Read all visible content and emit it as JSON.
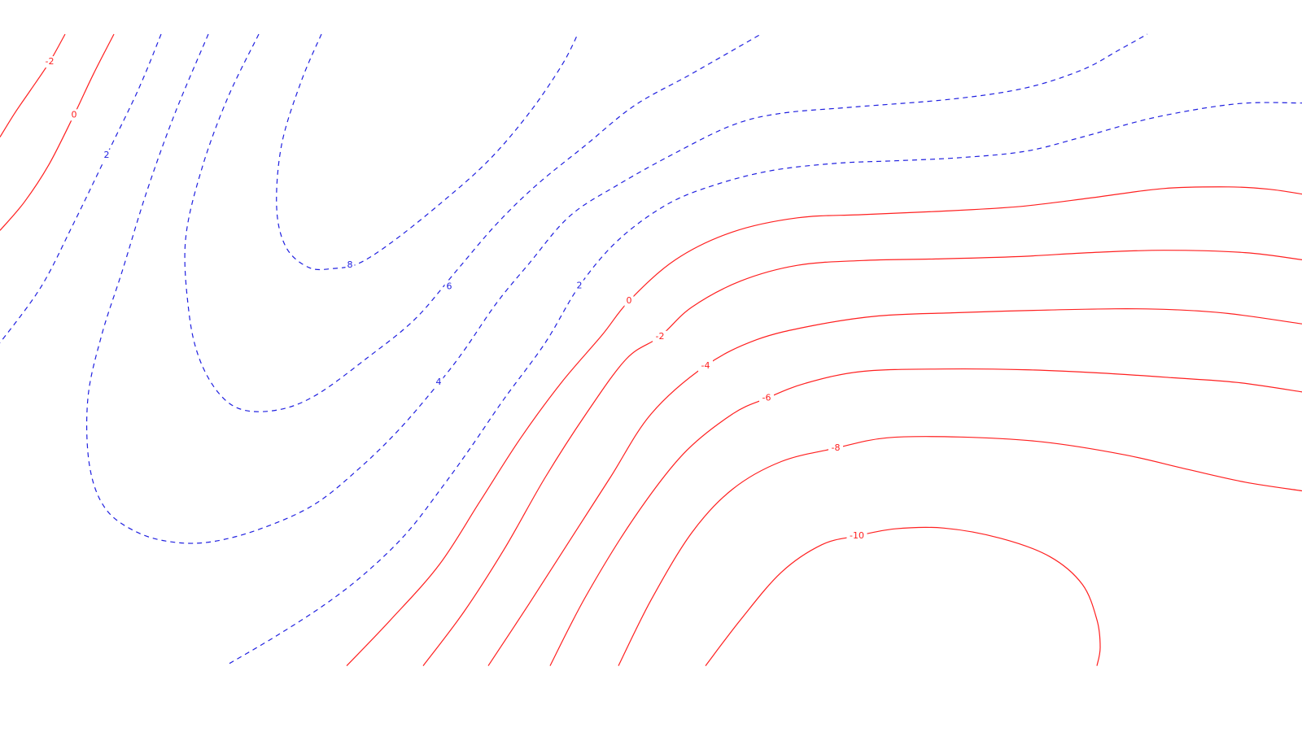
{
  "chart_data": {
    "type": "contour",
    "xlim": [
      0,
      1600
    ],
    "ylim": [
      0,
      820
    ],
    "colors": {
      "positive": "#2020e0",
      "negative": "#ff2020",
      "background": "#ffffff"
    },
    "styles": {
      "positive": "dashed",
      "negative": "solid"
    },
    "levels": [
      {
        "id": "pos-8",
        "value": 8,
        "sign": "positive",
        "label": "8",
        "labels_at": [
          [
            430,
            292
          ]
        ],
        "points": [
          [
            395,
            0
          ],
          [
            370,
            60
          ],
          [
            346,
            140
          ],
          [
            340,
            220
          ],
          [
            352,
            270
          ],
          [
            380,
            295
          ],
          [
            410,
            296
          ],
          [
            440,
            290
          ],
          [
            480,
            264
          ],
          [
            540,
            215
          ],
          [
            600,
            160
          ],
          [
            650,
            100
          ],
          [
            690,
            40
          ],
          [
            710,
            0
          ]
        ]
      },
      {
        "id": "pos-6",
        "value": 6,
        "sign": "positive",
        "label": "6",
        "labels_at": [
          [
            552,
            319
          ]
        ],
        "points": [
          [
            318,
            0
          ],
          [
            280,
            80
          ],
          [
            248,
            170
          ],
          [
            228,
            260
          ],
          [
            232,
            350
          ],
          [
            245,
            410
          ],
          [
            270,
            455
          ],
          [
            300,
            475
          ],
          [
            345,
            474
          ],
          [
            390,
            455
          ],
          [
            450,
            410
          ],
          [
            510,
            360
          ],
          [
            560,
            300
          ],
          [
            610,
            240
          ],
          [
            660,
            190
          ],
          [
            720,
            140
          ],
          [
            780,
            90
          ],
          [
            850,
            50
          ],
          [
            935,
            0
          ]
        ]
      },
      {
        "id": "pos-4",
        "value": 4,
        "sign": "positive",
        "label": "4",
        "labels_at": [
          [
            539,
            440
          ]
        ],
        "points": [
          [
            256,
            0
          ],
          [
            215,
            100
          ],
          [
            180,
            200
          ],
          [
            150,
            300
          ],
          [
            125,
            380
          ],
          [
            108,
            460
          ],
          [
            110,
            545
          ],
          [
            130,
            600
          ],
          [
            170,
            630
          ],
          [
            215,
            642
          ],
          [
            262,
            641
          ],
          [
            320,
            625
          ],
          [
            385,
            595
          ],
          [
            440,
            550
          ],
          [
            490,
            500
          ],
          [
            540,
            440
          ],
          [
            570,
            400
          ],
          [
            610,
            340
          ],
          [
            650,
            290
          ],
          [
            700,
            230
          ],
          [
            760,
            190
          ],
          [
            830,
            150
          ],
          [
            900,
            115
          ],
          [
            960,
            100
          ],
          [
            1050,
            92
          ],
          [
            1170,
            82
          ],
          [
            1260,
            68
          ],
          [
            1330,
            45
          ],
          [
            1375,
            20
          ],
          [
            1410,
            0
          ]
        ]
      },
      {
        "id": "pos-2a",
        "value": 2,
        "sign": "positive",
        "label": "2",
        "labels_at": [
          [
            131,
            153
          ]
        ],
        "points": [
          [
            198,
            0
          ],
          [
            170,
            70
          ],
          [
            131,
            153
          ],
          [
            90,
            240
          ],
          [
            50,
            320
          ],
          [
            0,
            390
          ]
        ]
      },
      {
        "id": "pos-2b",
        "value": 2,
        "sign": "positive",
        "label": "2",
        "labels_at": [
          [
            712,
            318
          ]
        ],
        "points": [
          [
            282,
            795
          ],
          [
            340,
            760
          ],
          [
            400,
            720
          ],
          [
            450,
            680
          ],
          [
            500,
            630
          ],
          [
            545,
            570
          ],
          [
            580,
            520
          ],
          [
            620,
            460
          ],
          [
            670,
            390
          ],
          [
            712,
            318
          ],
          [
            760,
            260
          ],
          [
            820,
            215
          ],
          [
            880,
            190
          ],
          [
            950,
            172
          ],
          [
            1030,
            163
          ],
          [
            1100,
            160
          ],
          [
            1180,
            156
          ],
          [
            1260,
            148
          ],
          [
            1330,
            130
          ],
          [
            1420,
            105
          ],
          [
            1520,
            88
          ],
          [
            1600,
            87
          ]
        ]
      },
      {
        "id": "neg-2a",
        "value": -2,
        "sign": "negative",
        "label": "-2",
        "labels_at": [
          [
            61,
            35
          ]
        ],
        "points": [
          [
            80,
            0
          ],
          [
            61,
            35
          ],
          [
            38,
            70
          ],
          [
            18,
            100
          ],
          [
            0,
            130
          ]
        ]
      },
      {
        "id": "neg-0a",
        "value": 0,
        "sign": "negative",
        "label": "0",
        "labels_at": [
          [
            91,
            102
          ]
        ],
        "points": [
          [
            140,
            0
          ],
          [
            115,
            50
          ],
          [
            91,
            102
          ],
          [
            60,
            165
          ],
          [
            30,
            212
          ],
          [
            0,
            248
          ]
        ]
      },
      {
        "id": "neg-0b",
        "value": 0,
        "sign": "negative",
        "label": "0",
        "labels_at": [
          [
            773,
            337
          ]
        ],
        "points": [
          [
            426,
            798
          ],
          [
            480,
            740
          ],
          [
            540,
            670
          ],
          [
            590,
            590
          ],
          [
            640,
            510
          ],
          [
            690,
            440
          ],
          [
            740,
            380
          ],
          [
            773,
            337
          ],
          [
            830,
            285
          ],
          [
            900,
            250
          ],
          [
            980,
            232
          ],
          [
            1060,
            228
          ],
          [
            1150,
            224
          ],
          [
            1250,
            218
          ],
          [
            1340,
            207
          ],
          [
            1430,
            195
          ],
          [
            1510,
            193
          ],
          [
            1560,
            196
          ],
          [
            1600,
            202
          ]
        ]
      },
      {
        "id": "neg-m2",
        "value": -2,
        "sign": "negative",
        "label": "-2",
        "labels_at": [
          [
            811,
            382
          ]
        ],
        "points": [
          [
            520,
            798
          ],
          [
            570,
            730
          ],
          [
            620,
            650
          ],
          [
            670,
            560
          ],
          [
            720,
            480
          ],
          [
            770,
            410
          ],
          [
            811,
            382
          ],
          [
            850,
            345
          ],
          [
            910,
            312
          ],
          [
            980,
            292
          ],
          [
            1060,
            286
          ],
          [
            1150,
            284
          ],
          [
            1250,
            281
          ],
          [
            1340,
            276
          ],
          [
            1430,
            273
          ],
          [
            1530,
            276
          ],
          [
            1600,
            285
          ]
        ]
      },
      {
        "id": "neg-m4",
        "value": -4,
        "sign": "negative",
        "label": "-4",
        "labels_at": [
          [
            867,
            419
          ]
        ],
        "points": [
          [
            600,
            798
          ],
          [
            650,
            720
          ],
          [
            700,
            640
          ],
          [
            750,
            560
          ],
          [
            800,
            480
          ],
          [
            867,
            419
          ],
          [
            930,
            386
          ],
          [
            1000,
            368
          ],
          [
            1080,
            356
          ],
          [
            1170,
            352
          ],
          [
            1270,
            349
          ],
          [
            1370,
            347
          ],
          [
            1440,
            348
          ],
          [
            1510,
            353
          ],
          [
            1600,
            366
          ]
        ]
      },
      {
        "id": "neg-m6",
        "value": -6,
        "sign": "negative",
        "label": "-6",
        "labels_at": [
          [
            942,
            460
          ]
        ],
        "points": [
          [
            676,
            798
          ],
          [
            720,
            710
          ],
          [
            780,
            610
          ],
          [
            840,
            530
          ],
          [
            900,
            480
          ],
          [
            942,
            460
          ],
          [
            990,
            441
          ],
          [
            1060,
            426
          ],
          [
            1160,
            423
          ],
          [
            1260,
            424
          ],
          [
            1350,
            428
          ],
          [
            1440,
            434
          ],
          [
            1520,
            440
          ],
          [
            1600,
            452
          ]
        ]
      },
      {
        "id": "neg-m8",
        "value": -8,
        "sign": "negative",
        "label": "-8",
        "labels_at": [
          [
            1027,
            523
          ]
        ],
        "points": [
          [
            760,
            798
          ],
          [
            800,
            715
          ],
          [
            850,
            630
          ],
          [
            900,
            575
          ],
          [
            960,
            540
          ],
          [
            1027,
            523
          ],
          [
            1090,
            510
          ],
          [
            1180,
            509
          ],
          [
            1280,
            515
          ],
          [
            1380,
            531
          ],
          [
            1460,
            550
          ],
          [
            1530,
            566
          ],
          [
            1600,
            577
          ]
        ]
      },
      {
        "id": "neg-m10",
        "value": -10,
        "sign": "negative",
        "label": "-10",
        "labels_at": [
          [
            1053,
            634
          ]
        ],
        "points": [
          [
            867,
            798
          ],
          [
            910,
            740
          ],
          [
            960,
            680
          ],
          [
            1010,
            645
          ],
          [
            1053,
            634
          ],
          [
            1100,
            625
          ],
          [
            1160,
            624
          ],
          [
            1230,
            637
          ],
          [
            1290,
            660
          ],
          [
            1330,
            695
          ],
          [
            1348,
            740
          ],
          [
            1352,
            775
          ],
          [
            1348,
            798
          ]
        ]
      }
    ]
  }
}
